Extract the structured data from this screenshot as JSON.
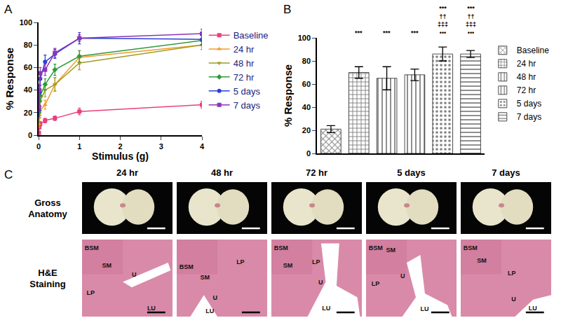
{
  "chart_data": [
    {
      "type": "line",
      "xlabel": "Stimulus (g)",
      "ylabel": "% Response",
      "x": [
        0.008,
        0.02,
        0.04,
        0.16,
        0.4,
        1,
        4
      ],
      "xlim": [
        0,
        4
      ],
      "xticks": [
        0,
        1,
        2,
        3,
        4
      ],
      "ylim": [
        0,
        100
      ],
      "yticks": [
        0,
        20,
        40,
        60,
        80,
        100
      ],
      "grid": false,
      "legend": "right",
      "series": [
        {
          "name": "Baseline",
          "color": "#e8407f",
          "marker": "square",
          "values": [
            2,
            7,
            10,
            13,
            15,
            21,
            27
          ],
          "errors": [
            1,
            1,
            2,
            2,
            2,
            3,
            3
          ]
        },
        {
          "name": "24 hr",
          "color": "#f39a2b",
          "marker": "triangle-up",
          "values": [
            10,
            18,
            22,
            27,
            45,
            69,
            80
          ],
          "errors": [
            3,
            3,
            4,
            4,
            6,
            6,
            4
          ]
        },
        {
          "name": "48 hr",
          "color": "#a19d22",
          "marker": "triangle-down",
          "values": [
            15,
            25,
            30,
            40,
            45,
            64,
            80
          ],
          "errors": [
            4,
            5,
            5,
            6,
            6,
            6,
            4
          ]
        },
        {
          "name": "72 hr",
          "color": "#2f9a3c",
          "marker": "diamond",
          "values": [
            20,
            30,
            35,
            45,
            58,
            70,
            84
          ],
          "errors": [
            4,
            5,
            5,
            5,
            5,
            5,
            4
          ]
        },
        {
          "name": "5 days",
          "color": "#2a3fd6",
          "marker": "circle",
          "values": [
            22,
            38,
            50,
            65,
            72,
            86,
            85
          ],
          "errors": [
            5,
            6,
            6,
            6,
            4,
            5,
            5
          ]
        },
        {
          "name": "7 days",
          "color": "#8a35b8",
          "marker": "square",
          "values": [
            25,
            40,
            55,
            58,
            73,
            86,
            90
          ],
          "errors": [
            4,
            5,
            5,
            5,
            4,
            3,
            4
          ]
        }
      ]
    },
    {
      "type": "bar",
      "ylabel": "% Response",
      "categories": [
        "Baseline",
        "24 hr",
        "48 hr",
        "72 hr",
        "5 days",
        "7 days"
      ],
      "values": [
        21,
        70,
        65,
        68,
        86,
        86
      ],
      "errors": [
        3,
        5,
        10,
        5,
        6,
        3
      ],
      "colors": [
        "#e0457b",
        "#f28c28",
        "#a3a02a",
        "#2e9e3e",
        "#2a3fd6",
        "#9b3fc0"
      ],
      "ylim": [
        0,
        100
      ],
      "yticks": [
        0,
        20,
        40,
        60,
        80,
        100
      ],
      "grid": false,
      "legend": "right",
      "tick_labels": "y",
      "annotations": [
        {
          "category": "24 hr",
          "lines": [
            "***"
          ]
        },
        {
          "category": "48 hr",
          "lines": [
            "***"
          ]
        },
        {
          "category": "72 hr",
          "lines": [
            "***"
          ]
        },
        {
          "category": "5 days",
          "lines": [
            "***",
            "††",
            "‡‡‡",
            "•••"
          ]
        },
        {
          "category": "7 days",
          "lines": [
            "***",
            "††",
            "‡‡‡",
            "•••"
          ]
        }
      ]
    }
  ],
  "panel_labels": [
    "A",
    "B",
    "C"
  ],
  "panel_c": {
    "columns": [
      "24 hr",
      "48 hr",
      "72 hr",
      "5 days",
      "7 days"
    ],
    "rows": [
      "Gross Anatomy",
      "H&E Staining"
    ],
    "tissue_labels": [
      [
        "BSM",
        "SM",
        "LP",
        "U",
        "LU"
      ],
      [
        "BSM",
        "SM",
        "LP",
        "U",
        "LU"
      ],
      [
        "BSM",
        "SM",
        "LP",
        "U",
        "LU"
      ],
      [
        "BSM",
        "SM",
        "LP",
        "U",
        "LU"
      ],
      [
        "BSM",
        "SM",
        "LP",
        "U",
        "LU"
      ]
    ]
  }
}
